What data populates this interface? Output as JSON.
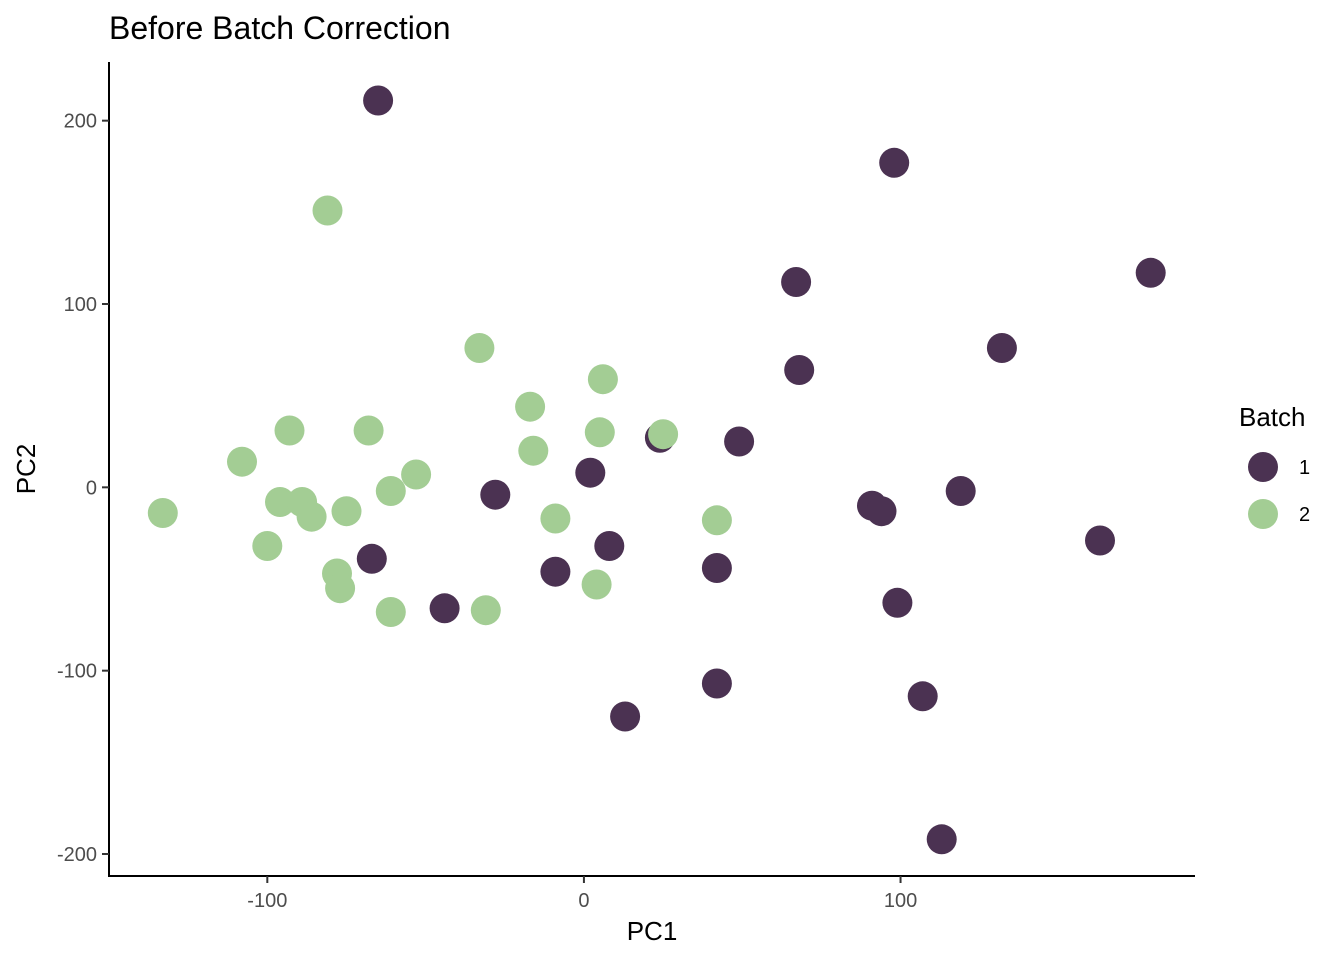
{
  "chart_data": {
    "type": "scatter",
    "title": "Before Batch Correction",
    "xlabel": "PC1",
    "ylabel": "PC2",
    "xlim": [
      -150,
      193
    ],
    "ylim": [
      -212,
      232
    ],
    "xticks": [
      -100,
      0,
      100
    ],
    "yticks": [
      -200,
      -100,
      0,
      100,
      200
    ],
    "grid": false,
    "legend": {
      "title": "Batch",
      "position": "right"
    },
    "series": [
      {
        "name": "1",
        "color": "#4b3252",
        "points": [
          [
            -65,
            211
          ],
          [
            98,
            177
          ],
          [
            67,
            112
          ],
          [
            179,
            117
          ],
          [
            132,
            76
          ],
          [
            68,
            64
          ],
          [
            24,
            27
          ],
          [
            49,
            25
          ],
          [
            2,
            8
          ],
          [
            -28,
            -4
          ],
          [
            119,
            -2
          ],
          [
            91,
            -10
          ],
          [
            94,
            -13
          ],
          [
            163,
            -29
          ],
          [
            -67,
            -39
          ],
          [
            8,
            -32
          ],
          [
            -9,
            -46
          ],
          [
            42,
            -44
          ],
          [
            99,
            -63
          ],
          [
            -44,
            -66
          ],
          [
            42,
            -107
          ],
          [
            107,
            -114
          ],
          [
            13,
            -125
          ],
          [
            113,
            -192
          ]
        ]
      },
      {
        "name": "2",
        "color": "#a3cd94",
        "points": [
          [
            -81,
            151
          ],
          [
            -33,
            76
          ],
          [
            6,
            59
          ],
          [
            -17,
            44
          ],
          [
            -68,
            31
          ],
          [
            -93,
            31
          ],
          [
            5,
            30
          ],
          [
            25,
            29
          ],
          [
            -16,
            20
          ],
          [
            -108,
            14
          ],
          [
            -53,
            7
          ],
          [
            -61,
            -2
          ],
          [
            -96,
            -8
          ],
          [
            -89,
            -8
          ],
          [
            -86,
            -16
          ],
          [
            -75,
            -13
          ],
          [
            -133,
            -14
          ],
          [
            -9,
            -17
          ],
          [
            42,
            -18
          ],
          [
            -100,
            -32
          ],
          [
            -78,
            -47
          ],
          [
            -77,
            -55
          ],
          [
            4,
            -53
          ],
          [
            -61,
            -68
          ],
          [
            -31,
            -67
          ]
        ]
      }
    ]
  }
}
